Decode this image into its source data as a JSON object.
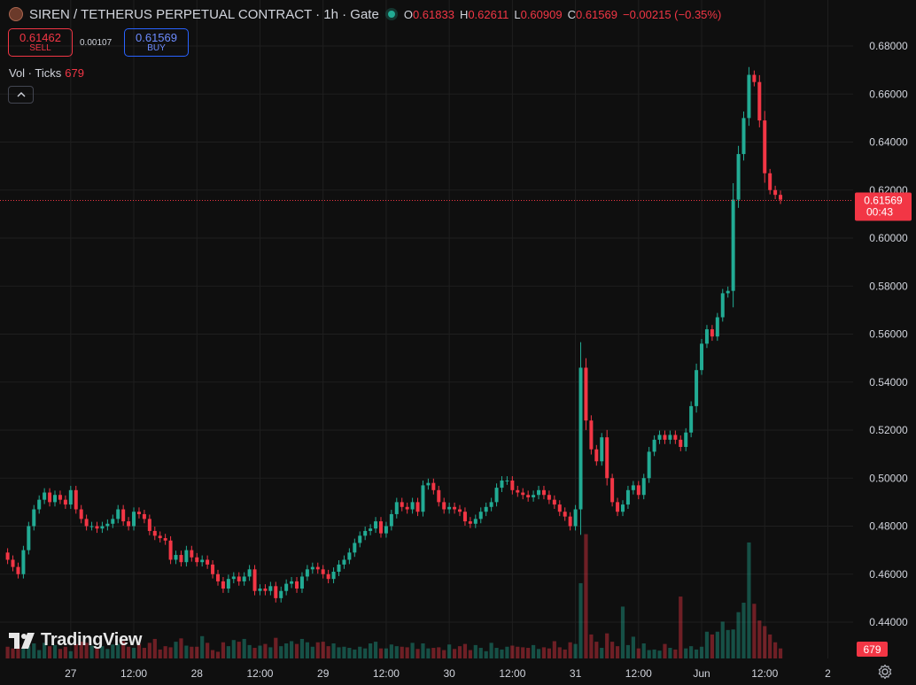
{
  "header": {
    "title": "SIREN / TETHERUS PERPETUAL CONTRACT · 1h · Gate",
    "ohlc": {
      "o_label": "O",
      "o": "0.61833",
      "h_label": "H",
      "h": "0.62611",
      "l_label": "L",
      "l": "0.60909",
      "c_label": "C",
      "c": "0.61569",
      "change": "−0.00215 (−0.35%)"
    }
  },
  "trade": {
    "sell_price": "0.61462",
    "sell_label": "SELL",
    "spread": "0.00107",
    "buy_price": "0.61569",
    "buy_label": "BUY"
  },
  "volume_legend": {
    "label": "Vol · Ticks",
    "value": "679"
  },
  "branding": "TradingView",
  "colors": {
    "up": "#22ab94",
    "down": "#f23645",
    "background": "#0f0f0f",
    "grid": "#1f1f1f"
  },
  "chart_data": {
    "type": "candlestick",
    "interval": "1h",
    "price_axis": {
      "min": 0.43,
      "max": 0.685,
      "ticks": [
        "0.68000",
        "0.66000",
        "0.64000",
        "0.62000",
        "0.60000",
        "0.58000",
        "0.56000",
        "0.54000",
        "0.52000",
        "0.50000",
        "0.48000",
        "0.46000",
        "0.44000"
      ],
      "tick_values": [
        0.68,
        0.66,
        0.64,
        0.62,
        0.6,
        0.58,
        0.56,
        0.54,
        0.52,
        0.5,
        0.48,
        0.46,
        0.44
      ]
    },
    "time_axis": {
      "labels": [
        "27",
        "12:00",
        "28",
        "12:00",
        "29",
        "12:00",
        "30",
        "12:00",
        "31",
        "12:00",
        "Jun",
        "12:00",
        "2"
      ],
      "label_bar_index": [
        12,
        24,
        36,
        48,
        60,
        72,
        84,
        96,
        108,
        120,
        132,
        144,
        156
      ]
    },
    "last_price": {
      "value": "0.61569",
      "countdown": "00:43"
    },
    "last_volume": "679",
    "close": [
      0.466,
      0.463,
      0.46,
      0.47,
      0.48,
      0.487,
      0.491,
      0.494,
      0.49,
      0.493,
      0.491,
      0.489,
      0.495,
      0.487,
      0.483,
      0.48,
      0.48,
      0.479,
      0.48,
      0.481,
      0.483,
      0.487,
      0.482,
      0.48,
      0.486,
      0.485,
      0.483,
      0.478,
      0.476,
      0.475,
      0.474,
      0.466,
      0.468,
      0.465,
      0.47,
      0.467,
      0.465,
      0.466,
      0.464,
      0.46,
      0.457,
      0.454,
      0.458,
      0.459,
      0.457,
      0.459,
      0.462,
      0.453,
      0.454,
      0.453,
      0.455,
      0.45,
      0.453,
      0.456,
      0.457,
      0.454,
      0.459,
      0.462,
      0.463,
      0.462,
      0.46,
      0.458,
      0.461,
      0.464,
      0.466,
      0.469,
      0.473,
      0.476,
      0.478,
      0.479,
      0.482,
      0.477,
      0.48,
      0.485,
      0.49,
      0.488,
      0.487,
      0.49,
      0.486,
      0.497,
      0.498,
      0.495,
      0.49,
      0.487,
      0.488,
      0.487,
      0.486,
      0.482,
      0.481,
      0.483,
      0.486,
      0.488,
      0.49,
      0.496,
      0.499,
      0.499,
      0.495,
      0.494,
      0.493,
      0.492,
      0.493,
      0.495,
      0.493,
      0.491,
      0.489,
      0.486,
      0.484,
      0.48,
      0.487,
      0.546,
      0.524,
      0.512,
      0.507,
      0.517,
      0.5,
      0.49,
      0.486,
      0.489,
      0.495,
      0.497,
      0.493,
      0.5,
      0.511,
      0.516,
      0.518,
      0.516,
      0.518,
      0.516,
      0.513,
      0.519,
      0.53,
      0.545,
      0.556,
      0.562,
      0.559,
      0.567,
      0.577,
      0.578,
      0.616,
      0.635,
      0.65,
      0.668,
      0.665,
      0.649,
      0.627,
      0.62,
      0.618,
      0.616
    ],
    "volume": [
      21,
      18,
      25,
      19,
      22,
      27,
      15,
      28,
      22,
      24,
      17,
      21,
      13,
      26,
      30,
      28,
      23,
      19,
      22,
      17,
      25,
      26,
      31,
      21,
      19,
      26,
      19,
      28,
      35,
      16,
      22,
      20,
      30,
      36,
      23,
      21,
      21,
      40,
      28,
      15,
      12,
      29,
      22,
      33,
      30,
      35,
      24,
      19,
      23,
      26,
      20,
      37,
      22,
      27,
      31,
      26,
      35,
      29,
      21,
      29,
      30,
      22,
      27,
      20,
      21,
      19,
      16,
      21,
      18,
      27,
      30,
      18,
      18,
      25,
      22,
      21,
      20,
      28,
      17,
      27,
      18,
      19,
      20,
      15,
      25,
      17,
      22,
      26,
      15,
      24,
      19,
      13,
      28,
      19,
      16,
      21,
      23,
      21,
      20,
      19,
      24,
      17,
      20,
      18,
      31,
      20,
      16,
      29,
      26,
      135,
      223,
      43,
      30,
      19,
      45,
      30,
      22,
      93,
      24,
      39,
      18,
      27,
      15,
      16,
      14,
      26,
      19,
      16,
      111,
      18,
      22,
      16,
      21,
      48,
      43,
      48,
      66,
      51,
      52,
      83,
      100,
      208,
      98,
      68,
      58,
      43,
      29,
      18
    ]
  }
}
